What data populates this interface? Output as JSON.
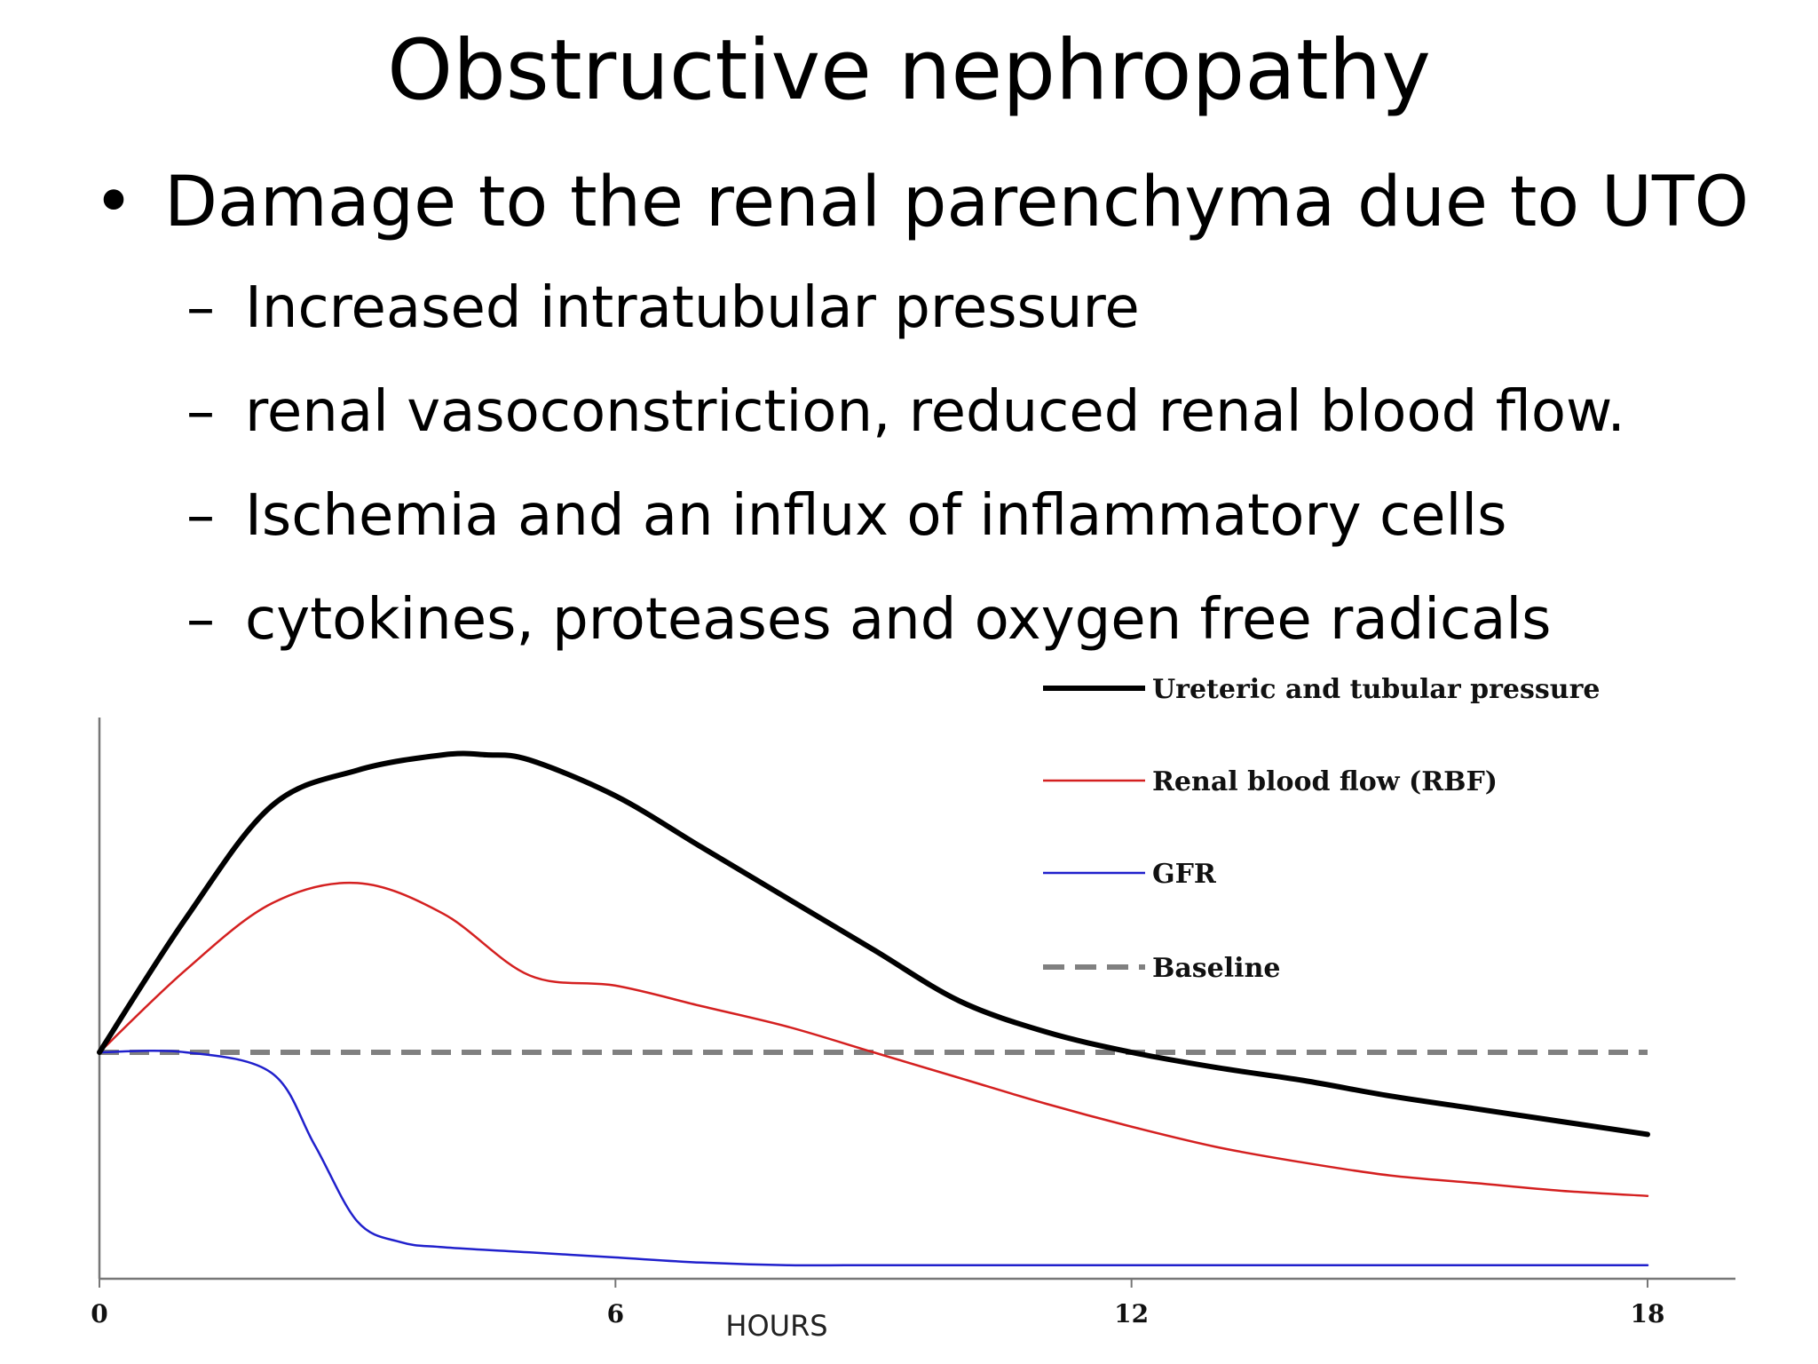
{
  "slide": {
    "title": "Obstructive nephropathy",
    "bullet": "Damage to the renal parenchyma due to UTO",
    "bullet_marker": "•",
    "sub_marker": "–",
    "sub_bullets": [
      "Increased intratubular pressure",
      "renal vasoconstriction, reduced renal blood flow.",
      "Ischemia and an influx of inflammatory cells",
      "cytokines, proteases and oxygen free radicals"
    ]
  },
  "chart_data": {
    "type": "line",
    "xlabel": "HOURS",
    "ylabel": "",
    "xlim": [
      0,
      18
    ],
    "ylim": [
      -5,
      6
    ],
    "xticks": [
      0,
      6,
      12,
      18
    ],
    "xtick_labels": [
      "0",
      "6",
      "12",
      "18"
    ],
    "grid": false,
    "legend_position": "top-right",
    "series": [
      {
        "name": "Ureteric and tubular pressure",
        "color": "#000000",
        "style": "solid-thick",
        "x": [
          0,
          1,
          2,
          3,
          4,
          4.5,
          5,
          6,
          7,
          8,
          9,
          10,
          11,
          12,
          13,
          14,
          15,
          16,
          17,
          18
        ],
        "y": [
          0,
          2.6,
          4.8,
          5.5,
          5.8,
          5.8,
          5.7,
          5.0,
          4.0,
          3.0,
          2.0,
          1.0,
          0.4,
          0.0,
          -0.3,
          -0.55,
          -0.85,
          -1.1,
          -1.35,
          -1.6
        ]
      },
      {
        "name": "Renal blood flow (RBF)",
        "color": "#d42020",
        "style": "solid",
        "x": [
          0,
          1,
          2,
          3,
          4,
          5,
          6,
          7,
          8,
          9,
          10,
          11,
          12,
          13,
          14,
          15,
          16,
          17,
          18
        ],
        "y": [
          0,
          1.6,
          2.9,
          3.3,
          2.7,
          1.5,
          1.3,
          0.9,
          0.5,
          0.0,
          -0.5,
          -1.0,
          -1.45,
          -1.85,
          -2.15,
          -2.4,
          -2.55,
          -2.7,
          -2.8
        ]
      },
      {
        "name": "GFR",
        "color": "#2020cc",
        "style": "solid",
        "x": [
          0,
          1,
          2,
          2.5,
          3,
          3.5,
          4,
          5,
          6,
          7,
          8,
          9,
          10,
          12,
          15,
          18
        ],
        "y": [
          0,
          0,
          -0.4,
          -1.8,
          -3.3,
          -3.7,
          -3.8,
          -3.9,
          -4.0,
          -4.1,
          -4.15,
          -4.15,
          -4.15,
          -4.15,
          -4.15,
          -4.15
        ]
      },
      {
        "name": "Baseline",
        "color": "#808080",
        "style": "dashed",
        "x": [
          0,
          18
        ],
        "y": [
          0,
          0
        ]
      }
    ]
  }
}
